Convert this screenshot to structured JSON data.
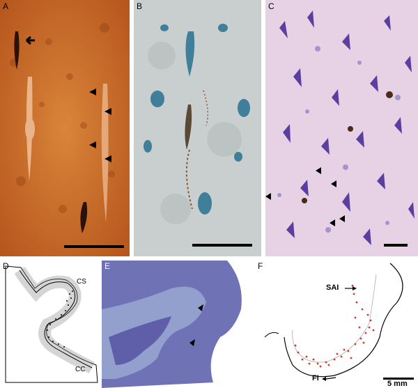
{
  "panels": [
    {
      "id": "A",
      "label": "A",
      "stain": "orange-brown"
    },
    {
      "id": "B",
      "label": "B",
      "stain": "blue-grey with brown"
    },
    {
      "id": "C",
      "label": "C",
      "stain": "purple Nissl"
    },
    {
      "id": "D",
      "label": "D",
      "annotations": [
        "CS",
        "CC"
      ]
    },
    {
      "id": "E",
      "label": "E",
      "stain": "blue"
    },
    {
      "id": "F",
      "label": "F",
      "annotations": [
        "SAI",
        "FI"
      ],
      "scale_label": "5 mm"
    }
  ],
  "colors": {
    "panel_a": "#c8702a",
    "panel_b": "#c9cfce",
    "panel_c": "#e6d2e4",
    "panel_d_fill": "#c8c8c8",
    "panel_e": "#6f72b5",
    "panel_f_dots": "#e0321c"
  }
}
